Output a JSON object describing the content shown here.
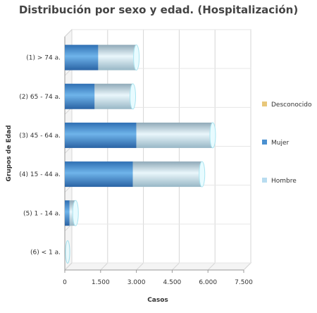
{
  "chart_data": {
    "type": "bar",
    "orientation": "horizontal",
    "stacked": true,
    "title": "Distribución por sexo y edad. (Hospitalización)",
    "xlabel": "Casos",
    "ylabel": "Grupos de Edad",
    "categories": [
      "(1) > 74 a.",
      "(2) 65 - 74 a.",
      "(3) 45 - 64 a.",
      "(4) 15 - 44 a.",
      "(5) 1 - 14 a.",
      "(6) < 1 a."
    ],
    "series": [
      {
        "name": "Mujer",
        "values": [
          1400,
          1250,
          3000,
          2850,
          200,
          0
        ],
        "color": "#4a90d0"
      },
      {
        "name": "Hombre",
        "values": [
          1600,
          1600,
          3200,
          2900,
          250,
          0
        ],
        "color": "#b8dcf0"
      },
      {
        "name": "Desconocido",
        "values": [
          0,
          0,
          0,
          0,
          0,
          0
        ],
        "color": "#e8c77a"
      }
    ],
    "xlim": [
      0,
      7500
    ],
    "xticks": [
      0,
      1500,
      3000,
      4500,
      6000,
      7500
    ],
    "xtick_labels": [
      "0",
      "1.500",
      "3.000",
      "4.500",
      "6.000",
      "7.500"
    ],
    "legend_order": [
      "Desconocido",
      "Mujer",
      "Hombre"
    ],
    "legend_position": "right",
    "grid": true
  }
}
